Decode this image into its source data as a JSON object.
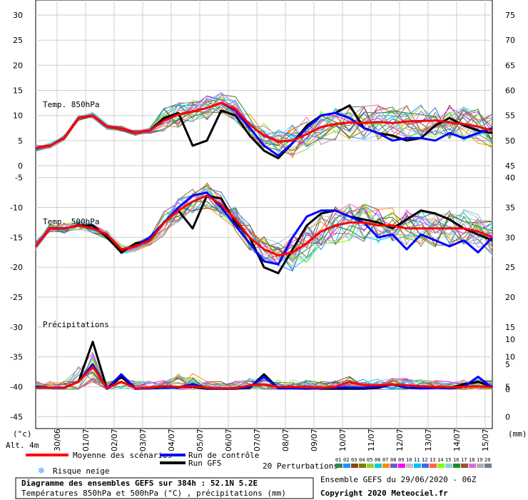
{
  "chart_data": {
    "type": "line",
    "x_dates": [
      "30/06",
      "01/07",
      "02/07",
      "03/07",
      "04/07",
      "05/07",
      "06/07",
      "07/07",
      "08/07",
      "09/07",
      "10/07",
      "11/07",
      "12/07",
      "13/07",
      "14/07",
      "15/07"
    ],
    "x_range_days": [
      -0.75,
      15.25
    ],
    "grid": true,
    "panels": [
      {
        "name": "Temp. 850hPa",
        "left_ticks": [
          "30",
          "25",
          "20",
          "15",
          "10",
          "5",
          "0"
        ],
        "right_ticks": [
          "75",
          "70",
          "65",
          "60",
          "55",
          "50",
          "45"
        ],
        "y_range": [
          0,
          33
        ],
        "x": [
          -0.75,
          -0.25,
          0.25,
          0.75,
          1.25,
          1.75,
          2.25,
          2.75,
          3.25,
          3.75,
          4.25,
          4.75,
          5.25,
          5.75,
          6.25,
          6.75,
          7.25,
          7.75,
          8.25,
          8.75,
          9.25,
          9.75,
          10.25,
          10.75,
          11.25,
          11.75,
          12.25,
          12.75,
          13.25,
          13.75,
          14.25,
          14.75,
          15.25
        ],
        "series": [
          {
            "name": "Moyenne des scénarios",
            "color": "#ff0000",
            "width": 3,
            "values": [
              3.5,
              4.0,
              5.5,
              9.5,
              10.0,
              7.8,
              7.4,
              6.6,
              7.0,
              9.0,
              10.2,
              10.8,
              11.5,
              12.5,
              11.3,
              8.2,
              6.0,
              4.8,
              5.0,
              6.3,
              7.7,
              8.3,
              8.6,
              8.5,
              8.7,
              8.5,
              8.8,
              8.9,
              9.0,
              8.6,
              8.3,
              7.8,
              7.0
            ]
          },
          {
            "name": "Run de contrôle",
            "color": "#0000ff",
            "width": 3,
            "values": [
              3.5,
              4.0,
              5.5,
              9.5,
              10.0,
              7.8,
              7.4,
              6.6,
              7.0,
              9.0,
              10.2,
              10.8,
              11.5,
              12.5,
              11.0,
              7.5,
              4.0,
              2.0,
              4.5,
              7.5,
              10.0,
              10.5,
              9.5,
              7.5,
              6.5,
              5.0,
              5.5,
              5.5,
              5.0,
              6.5,
              5.5,
              6.5,
              7.5
            ]
          },
          {
            "name": "Run GFS",
            "color": "#000000",
            "width": 3,
            "values": [
              3.5,
              4.0,
              5.5,
              9.5,
              10.0,
              7.8,
              7.4,
              6.6,
              7.0,
              9.5,
              10.5,
              4.0,
              5.0,
              11.0,
              10.0,
              6.0,
              3.0,
              1.5,
              4.5,
              8.0,
              10.0,
              10.5,
              12.0,
              7.5,
              6.5,
              6.0,
              5.0,
              5.5,
              8.0,
              9.5,
              8.0,
              7.0,
              6.5
            ]
          }
        ]
      },
      {
        "name": "Temp. 500hPa",
        "left_ticks": [
          "-5",
          "-10",
          "-15",
          "-20",
          "-25",
          "-30",
          "-35",
          "-40",
          "-45"
        ],
        "right_ticks": [
          "40",
          "35",
          "30",
          "25",
          "20",
          "15",
          "10",
          "5",
          "0"
        ],
        "y_range": [
          -47,
          -3
        ],
        "x": [
          -0.75,
          -0.25,
          0.25,
          0.75,
          1.25,
          1.75,
          2.25,
          2.75,
          3.25,
          3.75,
          4.25,
          4.75,
          5.25,
          5.75,
          6.25,
          6.75,
          7.25,
          7.75,
          8.25,
          8.75,
          9.25,
          9.75,
          10.25,
          10.75,
          11.25,
          11.75,
          12.25,
          12.75,
          13.25,
          13.75,
          14.25,
          14.75,
          15.25
        ],
        "series": [
          {
            "name": "Moyenne des scénarios",
            "color": "#ff0000",
            "width": 3,
            "values": [
              -16.5,
              -13.5,
              -13.5,
              -13.0,
              -13.5,
              -14.5,
              -17.0,
              -16.5,
              -15.5,
              -12.5,
              -10.5,
              -9.0,
              -8.0,
              -9.5,
              -12.0,
              -15.0,
              -17.0,
              -18.0,
              -17.5,
              -16.0,
              -14.0,
              -13.0,
              -12.5,
              -12.5,
              -13.0,
              -13.0,
              -13.5,
              -13.5,
              -13.5,
              -13.5,
              -13.5,
              -14.0,
              -15.0
            ]
          },
          {
            "name": "Run de contrôle",
            "color": "#0000ff",
            "width": 3,
            "values": [
              -16.5,
              -13.5,
              -13.5,
              -13.0,
              -13.5,
              -14.5,
              -17.0,
              -16.5,
              -15.0,
              -12.5,
              -10.0,
              -8.0,
              -7.5,
              -10.0,
              -13.0,
              -16.0,
              -19.0,
              -19.5,
              -15.0,
              -11.5,
              -10.5,
              -10.5,
              -11.5,
              -12.5,
              -15.0,
              -14.5,
              -17.0,
              -14.5,
              -15.5,
              -16.5,
              -15.5,
              -17.5,
              -15.0
            ]
          },
          {
            "name": "Run GFS",
            "color": "#000000",
            "width": 3,
            "values": [
              -16.5,
              -13.5,
              -13.5,
              -13.0,
              -13.0,
              -15.0,
              -17.5,
              -16.0,
              -15.5,
              -12.5,
              -10.5,
              -13.5,
              -8.0,
              -8.5,
              -12.5,
              -15.0,
              -20.0,
              -21.0,
              -17.0,
              -13.0,
              -11.0,
              -10.5,
              -11.5,
              -12.0,
              -12.5,
              -13.5,
              -12.0,
              -10.5,
              -11.0,
              -12.0,
              -13.5,
              -14.5,
              -15.5
            ]
          }
        ]
      },
      {
        "name": "Précipitations",
        "right_ticks": [
          "10",
          "5",
          "0"
        ],
        "y_range_mm": [
          0,
          12
        ],
        "x": [
          -0.75,
          -0.25,
          0.25,
          0.75,
          1.25,
          1.75,
          2.25,
          2.75,
          3.25,
          3.75,
          4.25,
          4.75,
          5.25,
          5.75,
          6.25,
          6.75,
          7.25,
          7.75,
          8.25,
          8.75,
          9.25,
          9.75,
          10.25,
          10.75,
          11.25,
          11.75,
          12.25,
          12.75,
          13.25,
          13.75,
          14.25,
          14.75,
          15.25
        ],
        "series": [
          {
            "name": "Moyenne des scénarios",
            "color": "#ff0000",
            "width": 3,
            "values": [
              0.3,
              0.3,
              0.3,
              1.5,
              4.5,
              0.2,
              1.5,
              0.2,
              0.3,
              0.6,
              0.5,
              0.6,
              0.3,
              0.2,
              0.2,
              0.8,
              1.0,
              0.5,
              0.5,
              0.4,
              0.3,
              0.5,
              1.5,
              0.8,
              0.8,
              1.0,
              0.8,
              0.6,
              0.5,
              0.4,
              0.5,
              0.6,
              0.4
            ]
          },
          {
            "name": "Run de contrôle",
            "color": "#0000ff",
            "width": 3,
            "values": [
              0.3,
              0.3,
              0.3,
              1.5,
              5.0,
              0.1,
              3.0,
              0.1,
              0.2,
              0.3,
              0.4,
              1.0,
              0.2,
              0.1,
              0.1,
              0.5,
              2.5,
              0.2,
              0.2,
              0.1,
              0.2,
              0.3,
              0.4,
              0.3,
              0.5,
              1.0,
              0.3,
              0.2,
              0.3,
              0.2,
              0.5,
              2.5,
              0.3
            ]
          },
          {
            "name": "Run GFS",
            "color": "#000000",
            "width": 3,
            "values": [
              0.5,
              0.3,
              0.3,
              1.5,
              9.5,
              0.1,
              2.5,
              0.1,
              0.2,
              0.3,
              0.5,
              0.5,
              0.1,
              0.1,
              0.1,
              0.3,
              3.0,
              0.2,
              0.2,
              0.3,
              0.1,
              0.1,
              0.1,
              0.1,
              0.3,
              1.0,
              0.3,
              0.2,
              0.3,
              0.2,
              1.0,
              1.5,
              0.5
            ]
          }
        ]
      }
    ],
    "perturbation_colors": [
      "#2e8b57",
      "#1e90ff",
      "#8b4513",
      "#808000",
      "#9acd32",
      "#00ced1",
      "#ff8c00",
      "#6a5acd",
      "#ff00ff",
      "#c0c0c0",
      "#00bfff",
      "#4169e1",
      "#ff6347",
      "#7fff00",
      "#87ceeb",
      "#228b22",
      "#a0522d",
      "#da70d6",
      "#b0b0b0",
      "#708090"
    ]
  },
  "ui": {
    "unit_left": "(°c)",
    "unit_right": "(mm)",
    "alt": "Alt. 4m",
    "legend_mean": "Moyenne des scénarios",
    "legend_control": "Run de contrôle",
    "legend_gfs": "Run GFS",
    "legend_snow": "Risque neige",
    "legend_perturbations": "20 Perturbations",
    "pert_numbers": [
      "01",
      "02",
      "03",
      "04",
      "05",
      "06",
      "07",
      "08",
      "09",
      "10",
      "11",
      "12",
      "13",
      "14",
      "15",
      "16",
      "17",
      "18",
      "19",
      "20"
    ],
    "title_line1": "Diagramme des ensembles GEFS sur 384h : 52.1N 5.2E",
    "title_line2": "Températures 850hPa et 500hPa (°C) , précipitations (mm)",
    "ensemble_info": "Ensemble GEFS du 29/06/2020 - 06Z",
    "copyright": "Copyright 2020 Meteociel.fr",
    "snow_icon": "snowflake-icon"
  }
}
